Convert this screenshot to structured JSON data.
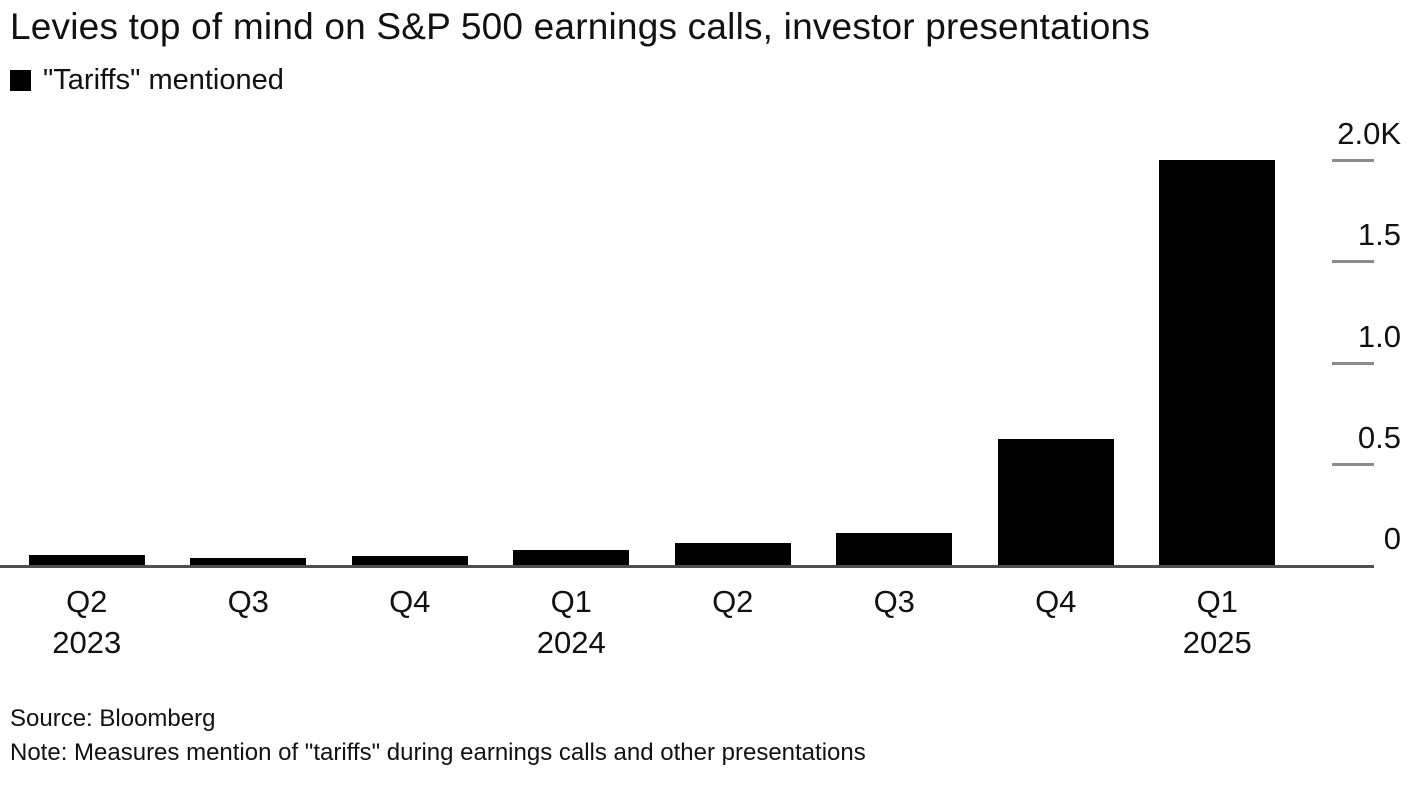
{
  "chart_data": {
    "type": "bar",
    "title": "Levies top of mind on S&P 500 earnings calls, investor presentations",
    "legend": [
      {
        "label": "\"Tariffs\" mentioned",
        "color": "#000000"
      }
    ],
    "categories": [
      "Q2",
      "Q3",
      "Q4",
      "Q1",
      "Q2",
      "Q3",
      "Q4",
      "Q1"
    ],
    "year_labels": [
      "2023",
      "",
      "",
      "2024",
      "",
      "",
      "",
      "2025"
    ],
    "values": [
      50,
      35,
      45,
      75,
      110,
      160,
      620,
      2000
    ],
    "ylim": [
      0,
      2000
    ],
    "yticks": [
      {
        "value": 2000,
        "label": "2.0K"
      },
      {
        "value": 1500,
        "label": "1.5"
      },
      {
        "value": 1000,
        "label": "1.0"
      },
      {
        "value": 500,
        "label": "0.5"
      },
      {
        "value": 0,
        "label": "0"
      }
    ],
    "bar_color": "#000000",
    "axis_color": "#4f4f4f",
    "tick_color": "#8c8c8c",
    "grid": false,
    "legend_position": "top-left",
    "y_axis_side": "right"
  },
  "footer": {
    "source": "Source: Bloomberg",
    "note": "Note: Measures mention of \"tariffs\" during earnings calls and other presentations"
  }
}
